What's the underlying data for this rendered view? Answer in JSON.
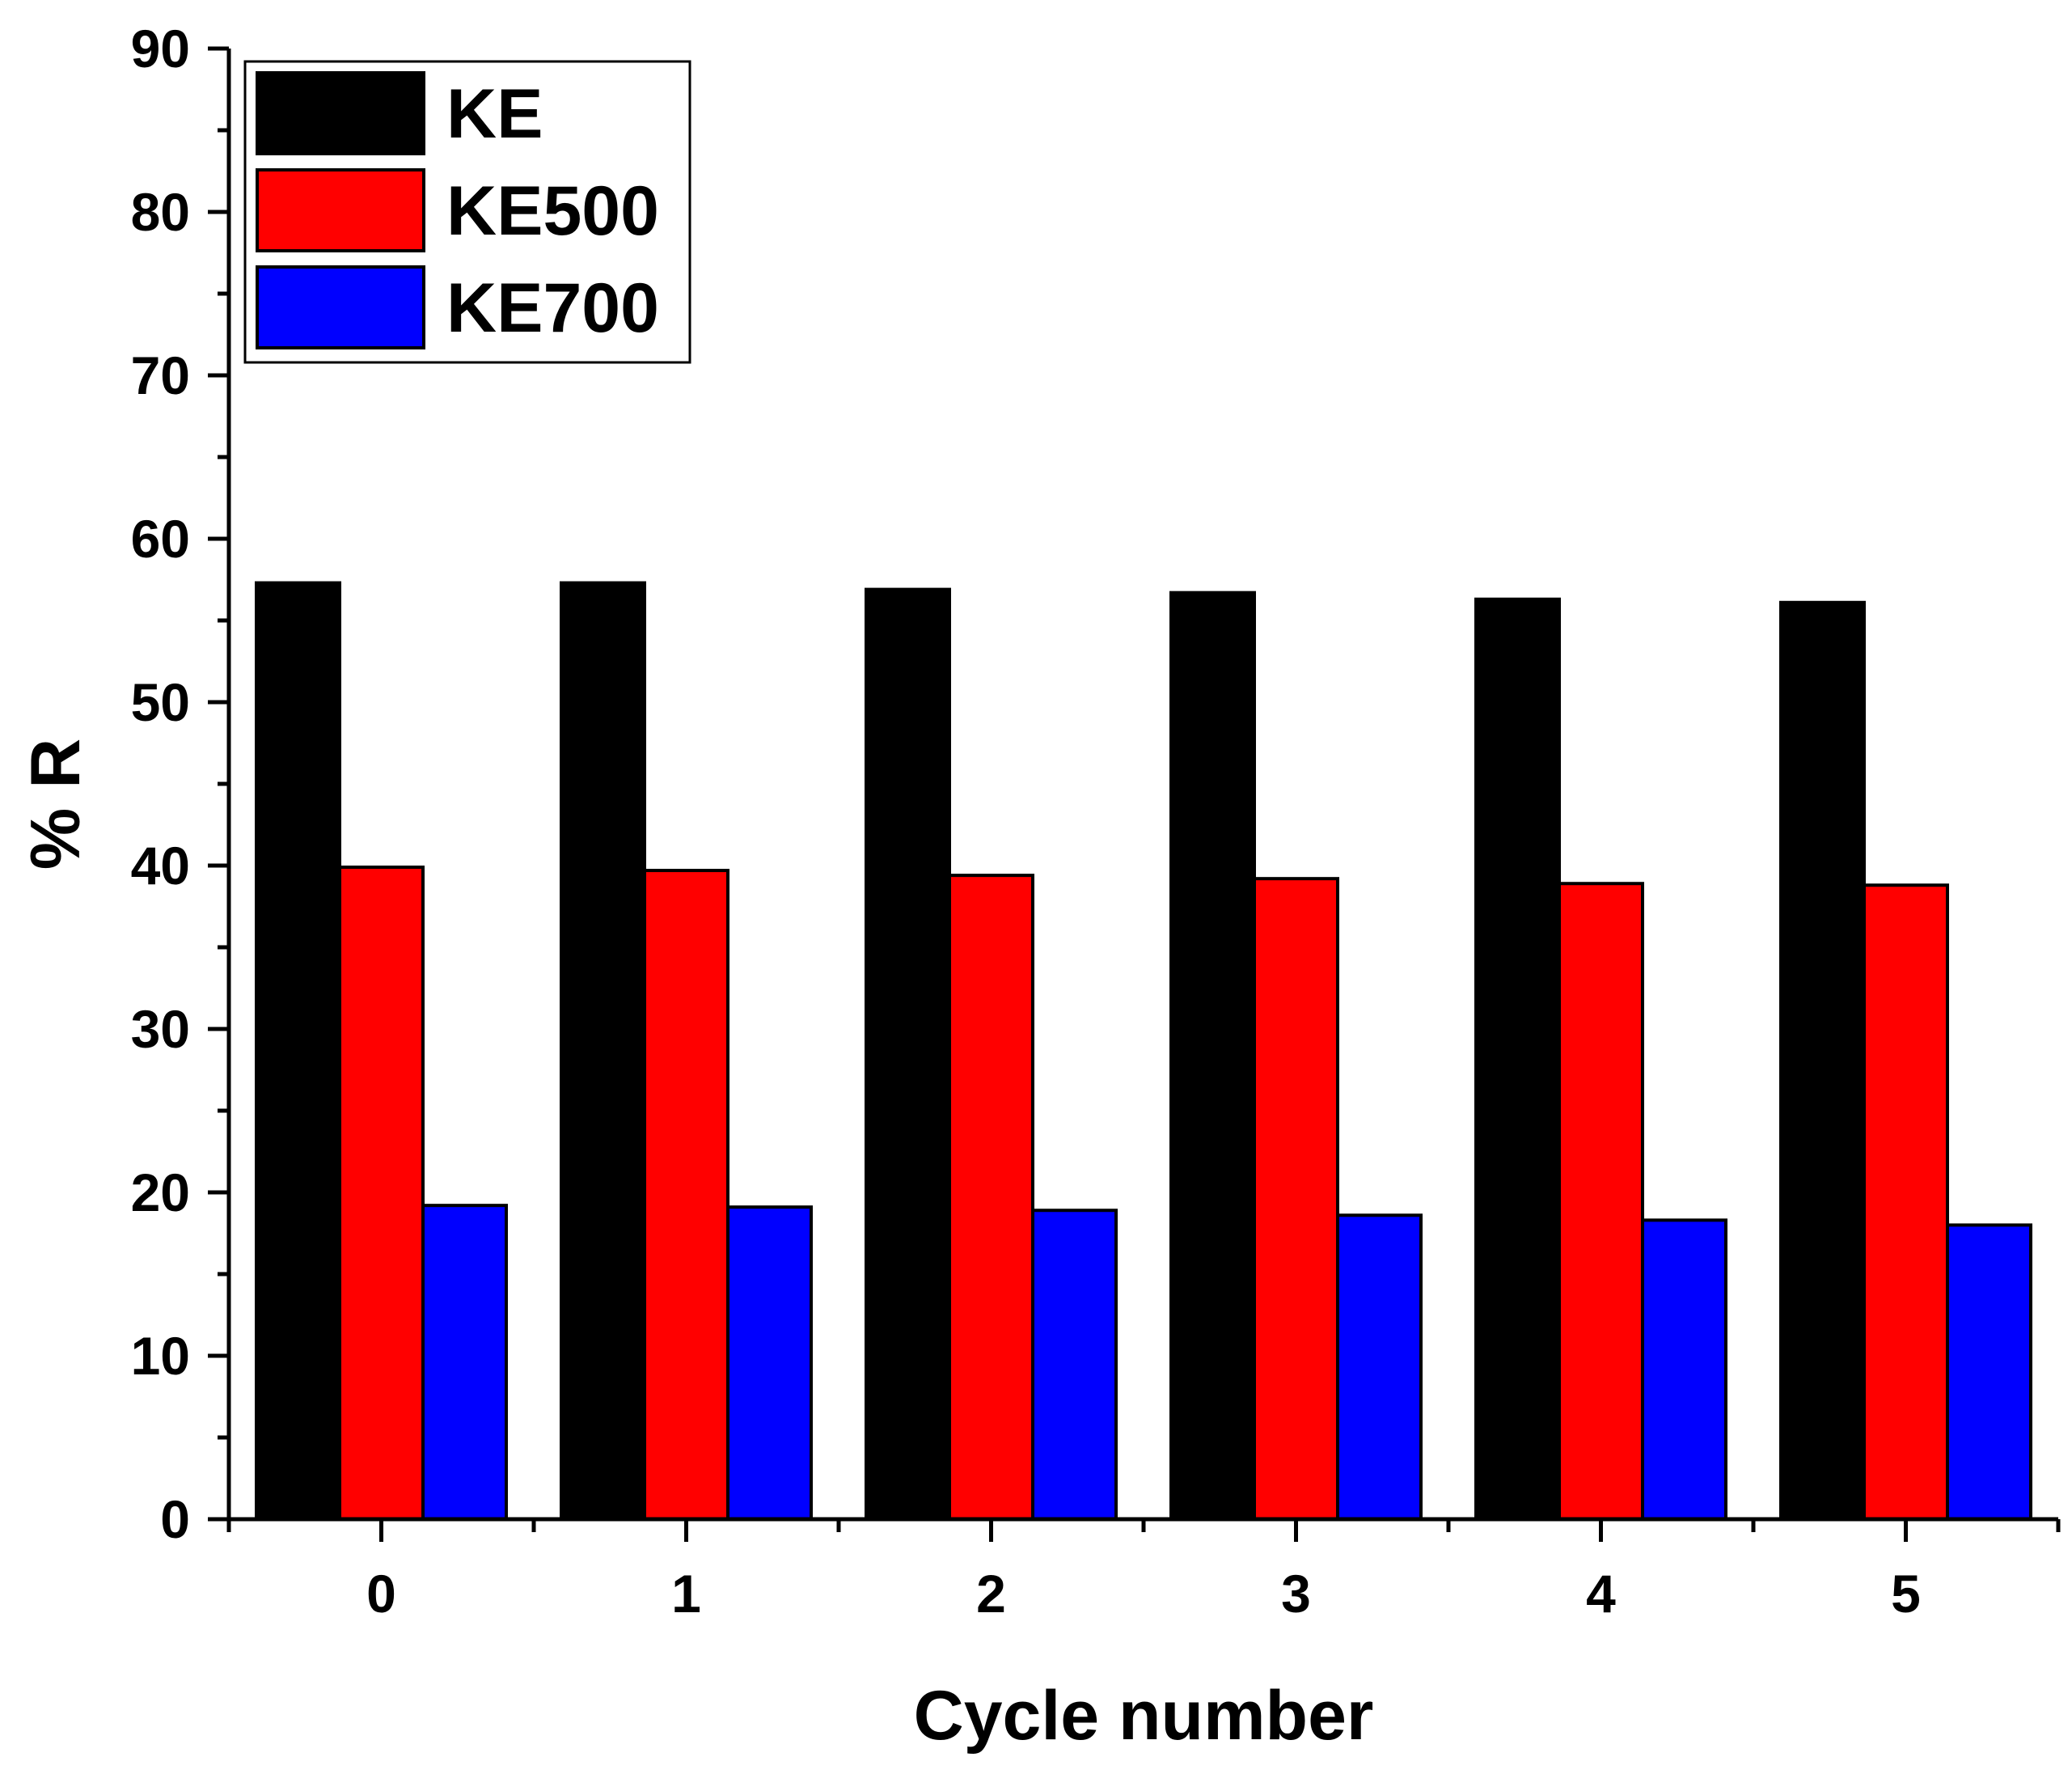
{
  "chart_data": {
    "type": "bar",
    "title": "",
    "xlabel": "Cycle number",
    "ylabel": "% R",
    "categories": [
      "0",
      "1",
      "2",
      "3",
      "4",
      "5"
    ],
    "ylim": [
      0,
      90
    ],
    "yticks": [
      "0",
      "10",
      "20",
      "30",
      "40",
      "50",
      "60",
      "70",
      "80",
      "90"
    ],
    "legend_position": "top-left",
    "series": [
      {
        "name": "KE",
        "color": "#000000",
        "values": [
          57.3,
          57.3,
          56.9,
          56.7,
          56.3,
          56.1
        ]
      },
      {
        "name": "KE500",
        "color": "#ff0000",
        "values": [
          39.9,
          39.7,
          39.4,
          39.2,
          38.9,
          38.8
        ]
      },
      {
        "name": "KE700",
        "color": "#0000ff",
        "values": [
          19.2,
          19.1,
          18.9,
          18.6,
          18.3,
          18.0
        ]
      }
    ]
  }
}
